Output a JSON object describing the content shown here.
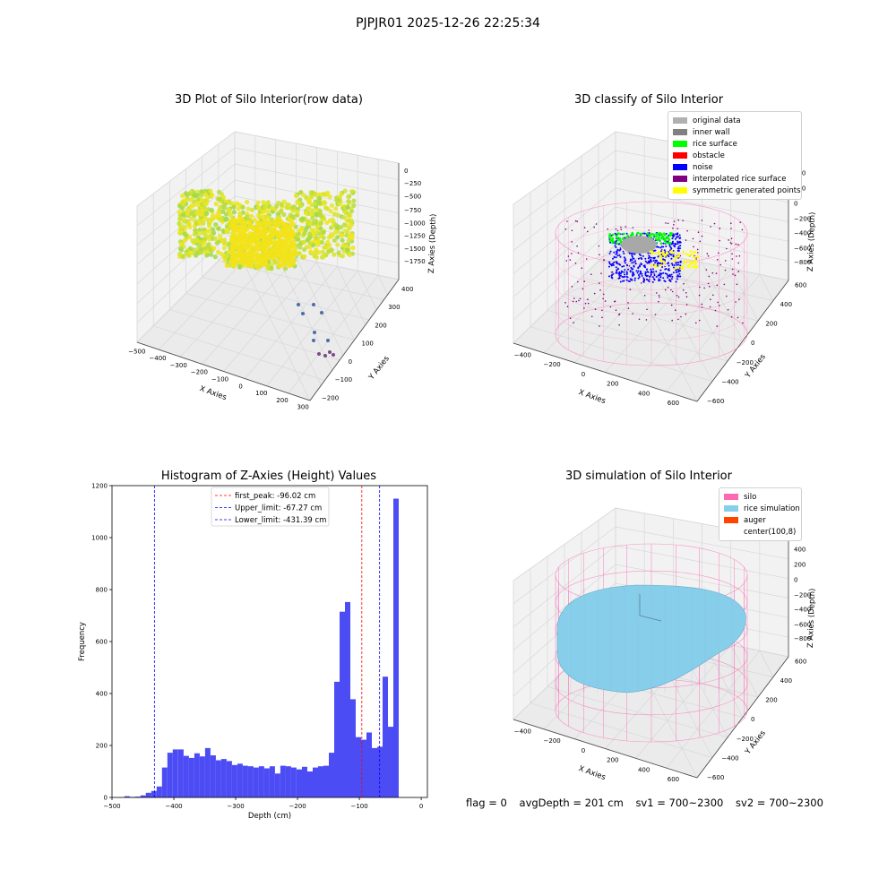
{
  "figure_title": "PJPJR01 2025-12-26 22:25:34",
  "plot1": {
    "title": "3D Plot of Silo Interior(row data)",
    "xlabel": "X Axies",
    "ylabel": "Y Axies",
    "zlabel": "Z Axies (Depth)",
    "xticks": [
      "−500",
      "−400",
      "−300",
      "−200",
      "−100",
      "0",
      "100",
      "200",
      "300"
    ],
    "yticks": [
      "−200",
      "−100",
      "0",
      "100",
      "200",
      "300",
      "400"
    ],
    "zticks": [
      "0",
      "−250",
      "−500",
      "−750",
      "−1000",
      "−1250",
      "−1500",
      "−1750"
    ]
  },
  "plot2": {
    "title": "3D classify of Silo Interior",
    "xlabel": "X Axies",
    "ylabel": "Y Axies",
    "zlabel": "Z Axies (Depth)",
    "xticks": [
      "−400",
      "−200",
      "0",
      "200",
      "400",
      "600"
    ],
    "yticks": [
      "−600",
      "−400",
      "−200",
      "0",
      "200",
      "400",
      "600"
    ],
    "zticks": [
      "400",
      "200",
      "0",
      "−200",
      "−400",
      "−600",
      "−800"
    ],
    "legend": [
      {
        "label": "original data",
        "color": "#b0b0b0"
      },
      {
        "label": "inner wall",
        "color": "#808080"
      },
      {
        "label": "rice surface",
        "color": "#00ff00"
      },
      {
        "label": "obstacle",
        "color": "#ff0000"
      },
      {
        "label": "noise",
        "color": "#0000ff"
      },
      {
        "label": "interpolated rice surface",
        "color": "#800080"
      },
      {
        "label": "symmetric generated points",
        "color": "#ffff00"
      }
    ]
  },
  "plot4": {
    "title": "3D simulation of Silo Interior",
    "xlabel": "X Axies",
    "ylabel": "Y Axies",
    "zlabel": "Z Axies (Depth)",
    "xticks": [
      "−400",
      "−200",
      "0",
      "200",
      "400",
      "600"
    ],
    "yticks": [
      "−600",
      "−400",
      "−200",
      "0",
      "200",
      "400",
      "600"
    ],
    "zticks": [
      "400",
      "200",
      "0",
      "−200",
      "−400",
      "−600",
      "−800"
    ],
    "legend": [
      {
        "label": "silo",
        "color": "#ff69b4"
      },
      {
        "label": "rice simulation",
        "color": "#87ceeb"
      },
      {
        "label": "auger",
        "color": "#ff4500"
      },
      {
        "label": "center(100,8)",
        "color": "#ffffff"
      }
    ]
  },
  "footer": {
    "flag": "flag = 0",
    "avg": "avgDepth = 201 cm",
    "sv1": "sv1 = 700~2300",
    "sv2": "sv2 = 700~2300"
  },
  "chart_data": [
    {
      "type": "scatter",
      "title": "3D Plot of Silo Interior(row data)",
      "xlabel": "X Axies",
      "ylabel": "Y Axies",
      "zlabel": "Z Axies (Depth)",
      "xlim": [
        -500,
        300
      ],
      "ylim": [
        -200,
        400
      ],
      "zlim": [
        -1750,
        0
      ]
    },
    {
      "type": "scatter",
      "title": "3D classify of Silo Interior",
      "xlabel": "X Axies",
      "ylabel": "Y Axies",
      "zlabel": "Z Axies (Depth)",
      "xlim": [
        -400,
        600
      ],
      "ylim": [
        -600,
        600
      ],
      "zlim": [
        -800,
        400
      ],
      "legend": [
        "original data",
        "inner wall",
        "rice surface",
        "obstacle",
        "noise",
        "interpolated rice surface",
        "symmetric generated points"
      ]
    },
    {
      "type": "bar",
      "title": "Histogram of Z-Axies (Height) Values",
      "xlabel": "Depth (cm)",
      "ylabel": "Frequency",
      "xlim": [
        -500,
        10
      ],
      "ylim": [
        0,
        1200
      ],
      "xticks": [
        "−500",
        "−400",
        "−300",
        "−200",
        "−100",
        "0"
      ],
      "yticks": [
        "0",
        "200",
        "400",
        "600",
        "800",
        "1000",
        "1200"
      ],
      "bin_start": -480,
      "bin_width": 8.7,
      "values": [
        5,
        2,
        3,
        8,
        18,
        25,
        42,
        115,
        172,
        185,
        185,
        160,
        152,
        170,
        158,
        190,
        162,
        143,
        148,
        140,
        125,
        130,
        122,
        120,
        115,
        120,
        112,
        120,
        92,
        122,
        120,
        115,
        108,
        118,
        100,
        115,
        120,
        122,
        172,
        445,
        715,
        752,
        378,
        232,
        222,
        250,
        190,
        195,
        465,
        272,
        1150
      ],
      "vlines": [
        {
          "label": "first_peak: -96.02 cm",
          "value": -96.02,
          "color": "#ff0000"
        },
        {
          "label": "Upper_limit: -67.27 cm",
          "value": -67.27,
          "color": "#0000ff"
        },
        {
          "label": "Lower_limit: -431.39 cm",
          "value": -431.39,
          "color": "#0000ff"
        }
      ],
      "bar_color": "#4c4cf5"
    },
    {
      "type": "scatter",
      "title": "3D simulation of Silo Interior",
      "xlabel": "X Axies",
      "ylabel": "Y Axies",
      "zlabel": "Z Axies (Depth)",
      "xlim": [
        -400,
        600
      ],
      "ylim": [
        -600,
        600
      ],
      "zlim": [
        -800,
        400
      ],
      "legend": [
        "silo",
        "rice simulation",
        "auger",
        "center(100,8)"
      ]
    }
  ]
}
